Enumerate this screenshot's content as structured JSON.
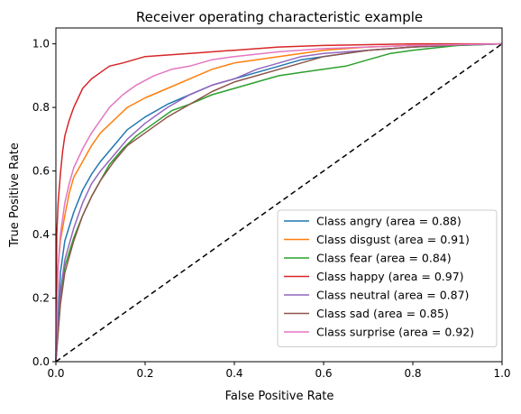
{
  "chart_data": {
    "type": "line",
    "title": "Receiver operating characteristic example",
    "xlabel": "False Positive Rate",
    "ylabel": "True Positive Rate",
    "xlim": [
      0.0,
      1.0
    ],
    "ylim": [
      0.0,
      1.05
    ],
    "x_ticks": [
      "0.0",
      "0.2",
      "0.4",
      "0.6",
      "0.8",
      "1.0"
    ],
    "y_ticks": [
      "0.0",
      "0.2",
      "0.4",
      "0.6",
      "0.8",
      "1.0"
    ],
    "grid": false,
    "legend_position": "lower-right",
    "reference_line": {
      "x": [
        0,
        1
      ],
      "y": [
        0,
        1
      ],
      "style": "dashed",
      "color": "#000000"
    },
    "series": [
      {
        "name": "Class angry (area = 0.88)",
        "color": "#1f77b4",
        "points": [
          [
            0,
            0
          ],
          [
            0.01,
            0.28
          ],
          [
            0.02,
            0.38
          ],
          [
            0.04,
            0.47
          ],
          [
            0.06,
            0.54
          ],
          [
            0.08,
            0.59
          ],
          [
            0.1,
            0.63
          ],
          [
            0.13,
            0.68
          ],
          [
            0.16,
            0.73
          ],
          [
            0.2,
            0.77
          ],
          [
            0.25,
            0.81
          ],
          [
            0.3,
            0.84
          ],
          [
            0.35,
            0.87
          ],
          [
            0.4,
            0.89
          ],
          [
            0.45,
            0.91
          ],
          [
            0.5,
            0.93
          ],
          [
            0.55,
            0.95
          ],
          [
            0.6,
            0.96
          ],
          [
            0.7,
            0.98
          ],
          [
            0.8,
            0.99
          ],
          [
            0.9,
            0.995
          ],
          [
            1.0,
            1.0
          ]
        ]
      },
      {
        "name": "Class disgust (area = 0.91)",
        "color": "#ff7f0e",
        "points": [
          [
            0,
            0
          ],
          [
            0.005,
            0.3
          ],
          [
            0.01,
            0.38
          ],
          [
            0.02,
            0.46
          ],
          [
            0.03,
            0.53
          ],
          [
            0.04,
            0.58
          ],
          [
            0.06,
            0.63
          ],
          [
            0.08,
            0.68
          ],
          [
            0.1,
            0.72
          ],
          [
            0.13,
            0.76
          ],
          [
            0.16,
            0.8
          ],
          [
            0.2,
            0.83
          ],
          [
            0.25,
            0.86
          ],
          [
            0.3,
            0.89
          ],
          [
            0.35,
            0.92
          ],
          [
            0.4,
            0.94
          ],
          [
            0.45,
            0.95
          ],
          [
            0.5,
            0.96
          ],
          [
            0.6,
            0.98
          ],
          [
            0.7,
            0.99
          ],
          [
            0.8,
            0.995
          ],
          [
            1.0,
            1.0
          ]
        ]
      },
      {
        "name": "Class fear (area = 0.84)",
        "color": "#2ca02c",
        "points": [
          [
            0,
            0
          ],
          [
            0.01,
            0.2
          ],
          [
            0.02,
            0.3
          ],
          [
            0.04,
            0.39
          ],
          [
            0.06,
            0.46
          ],
          [
            0.08,
            0.52
          ],
          [
            0.1,
            0.57
          ],
          [
            0.12,
            0.62
          ],
          [
            0.15,
            0.67
          ],
          [
            0.18,
            0.71
          ],
          [
            0.22,
            0.75
          ],
          [
            0.26,
            0.79
          ],
          [
            0.3,
            0.81
          ],
          [
            0.35,
            0.84
          ],
          [
            0.4,
            0.86
          ],
          [
            0.45,
            0.88
          ],
          [
            0.5,
            0.9
          ],
          [
            0.55,
            0.91
          ],
          [
            0.6,
            0.92
          ],
          [
            0.65,
            0.93
          ],
          [
            0.7,
            0.95
          ],
          [
            0.75,
            0.97
          ],
          [
            0.8,
            0.98
          ],
          [
            0.9,
            0.995
          ],
          [
            1.0,
            1.0
          ]
        ]
      },
      {
        "name": "Class happy (area = 0.97)",
        "color": "#d62728",
        "points": [
          [
            0,
            0
          ],
          [
            0.002,
            0.4
          ],
          [
            0.005,
            0.5
          ],
          [
            0.01,
            0.59
          ],
          [
            0.015,
            0.66
          ],
          [
            0.02,
            0.71
          ],
          [
            0.03,
            0.76
          ],
          [
            0.04,
            0.8
          ],
          [
            0.05,
            0.83
          ],
          [
            0.06,
            0.86
          ],
          [
            0.08,
            0.89
          ],
          [
            0.1,
            0.91
          ],
          [
            0.12,
            0.93
          ],
          [
            0.15,
            0.94
          ],
          [
            0.2,
            0.96
          ],
          [
            0.3,
            0.97
          ],
          [
            0.4,
            0.98
          ],
          [
            0.5,
            0.99
          ],
          [
            0.6,
            0.995
          ],
          [
            0.8,
            1.0
          ],
          [
            1.0,
            1.0
          ]
        ]
      },
      {
        "name": "Class neutral (area = 0.87)",
        "color": "#9467bd",
        "points": [
          [
            0,
            0
          ],
          [
            0.01,
            0.22
          ],
          [
            0.02,
            0.32
          ],
          [
            0.04,
            0.42
          ],
          [
            0.06,
            0.5
          ],
          [
            0.08,
            0.56
          ],
          [
            0.1,
            0.6
          ],
          [
            0.13,
            0.65
          ],
          [
            0.16,
            0.7
          ],
          [
            0.2,
            0.75
          ],
          [
            0.25,
            0.8
          ],
          [
            0.3,
            0.84
          ],
          [
            0.35,
            0.87
          ],
          [
            0.4,
            0.89
          ],
          [
            0.45,
            0.92
          ],
          [
            0.5,
            0.94
          ],
          [
            0.55,
            0.96
          ],
          [
            0.6,
            0.97
          ],
          [
            0.7,
            0.98
          ],
          [
            0.8,
            0.99
          ],
          [
            0.9,
            0.997
          ],
          [
            1.0,
            1.0
          ]
        ]
      },
      {
        "name": "Class sad (area = 0.85)",
        "color": "#8c564b",
        "points": [
          [
            0,
            0
          ],
          [
            0.01,
            0.18
          ],
          [
            0.02,
            0.28
          ],
          [
            0.04,
            0.38
          ],
          [
            0.06,
            0.46
          ],
          [
            0.08,
            0.52
          ],
          [
            0.1,
            0.57
          ],
          [
            0.13,
            0.63
          ],
          [
            0.16,
            0.68
          ],
          [
            0.2,
            0.72
          ],
          [
            0.25,
            0.77
          ],
          [
            0.3,
            0.81
          ],
          [
            0.35,
            0.85
          ],
          [
            0.4,
            0.88
          ],
          [
            0.45,
            0.9
          ],
          [
            0.5,
            0.92
          ],
          [
            0.55,
            0.94
          ],
          [
            0.6,
            0.96
          ],
          [
            0.7,
            0.98
          ],
          [
            0.8,
            0.99
          ],
          [
            0.9,
            0.997
          ],
          [
            1.0,
            1.0
          ]
        ]
      },
      {
        "name": "Class surprise (area = 0.92)",
        "color": "#e377c2",
        "points": [
          [
            0,
            0
          ],
          [
            0.005,
            0.3
          ],
          [
            0.01,
            0.4
          ],
          [
            0.02,
            0.5
          ],
          [
            0.03,
            0.56
          ],
          [
            0.04,
            0.61
          ],
          [
            0.06,
            0.67
          ],
          [
            0.08,
            0.72
          ],
          [
            0.1,
            0.76
          ],
          [
            0.12,
            0.8
          ],
          [
            0.15,
            0.84
          ],
          [
            0.18,
            0.87
          ],
          [
            0.22,
            0.9
          ],
          [
            0.26,
            0.92
          ],
          [
            0.3,
            0.93
          ],
          [
            0.35,
            0.95
          ],
          [
            0.4,
            0.96
          ],
          [
            0.5,
            0.975
          ],
          [
            0.6,
            0.985
          ],
          [
            0.7,
            0.99
          ],
          [
            0.8,
            0.995
          ],
          [
            1.0,
            1.0
          ]
        ]
      }
    ]
  }
}
